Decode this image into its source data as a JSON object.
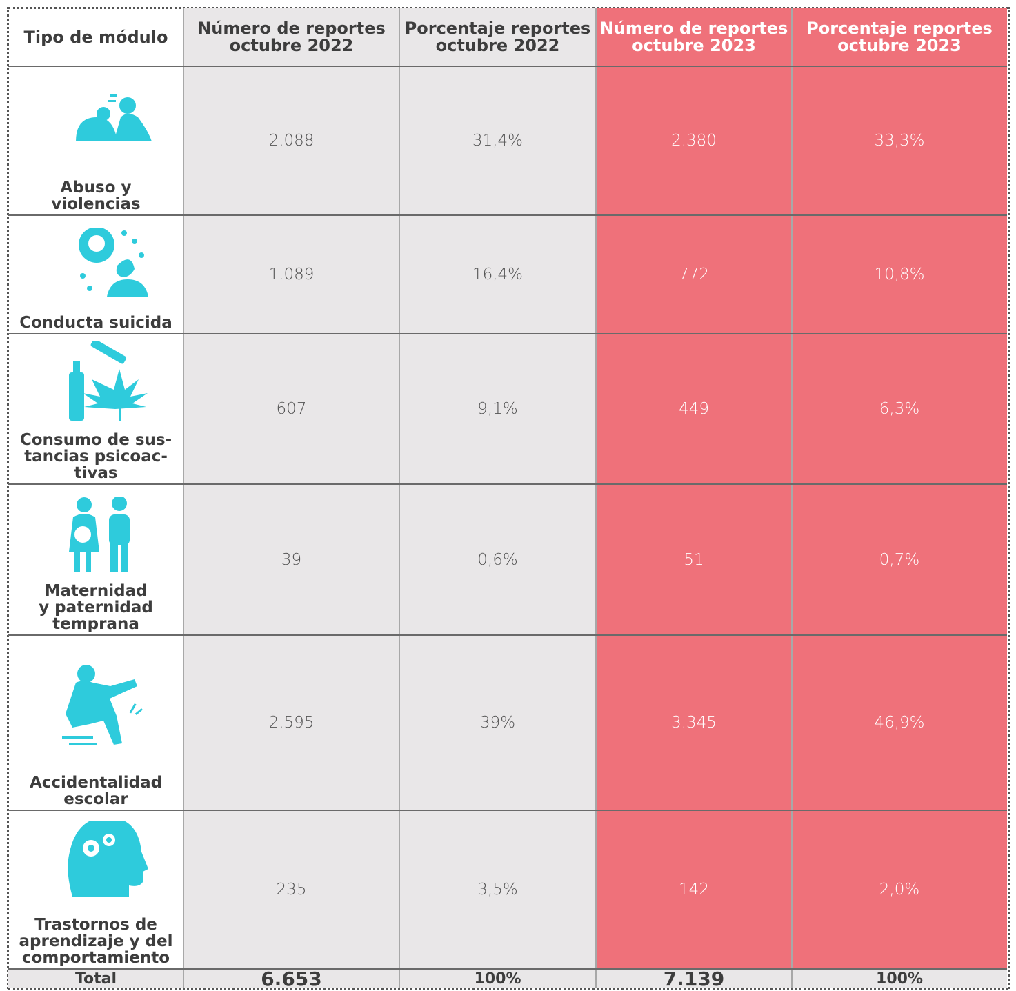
{
  "header": [
    [
      "Tipo de módulo"
    ],
    [
      "Número de reportes",
      "octubre 2022"
    ],
    [
      "Porcentaje reportes",
      "octubre 2022"
    ],
    [
      "Número de reportes",
      "octubre 2023"
    ],
    [
      "Porcentaje reportes",
      "octubre 2023"
    ]
  ],
  "rows": [
    {
      "module": [
        "Abuso y",
        "violencias"
      ],
      "values": [
        "2.088",
        "31,4%",
        "2.380",
        "33,3%"
      ]
    },
    {
      "module": [
        "Conducta suicida"
      ],
      "values": [
        "1.089",
        "16,4%",
        "772",
        "10,8%"
      ]
    },
    {
      "module": [
        "Consumo de sus-",
        "tancias psicoac-",
        "tivas"
      ],
      "values": [
        "607",
        "9,1%",
        "449",
        "6,3%"
      ]
    },
    {
      "module": [
        "Maternidad",
        "y paternidad",
        "temprana"
      ],
      "values": [
        "39",
        "0,6%",
        "51",
        "0,7%"
      ]
    },
    {
      "module": [
        "Accidentalidad",
        "escolar"
      ],
      "values": [
        "2.595",
        "39%",
        "3.345",
        "46,9%"
      ]
    },
    {
      "module": [
        "Trastornos de",
        "aprendizaje y del",
        "comportamiento"
      ],
      "values": [
        "235",
        "3,5%",
        "142",
        "2,0%"
      ]
    }
  ],
  "total": {
    "label": "Total",
    "values": [
      "6.653",
      "100%",
      "7.139",
      "100%"
    ]
  }
}
